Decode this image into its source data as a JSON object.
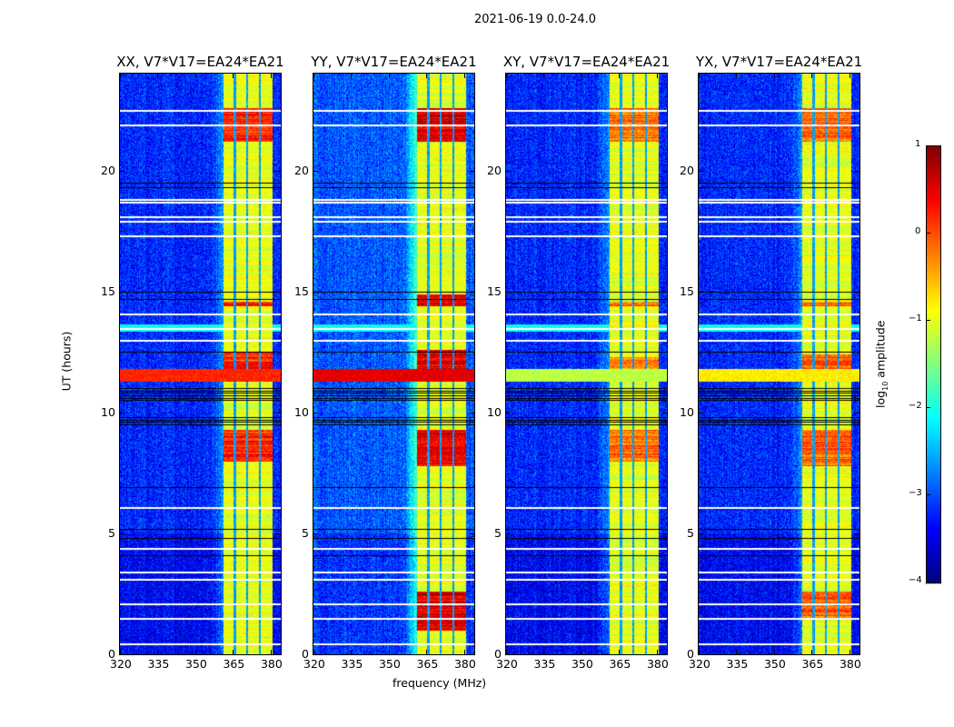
{
  "suptitle": "2021-06-19 0.0-24.0",
  "ylabel": "UT (hours)",
  "xlabel": "frequency (MHz)",
  "colorbar": {
    "label_prefix": "log",
    "label_sub": "10",
    "label_suffix": " amplitude",
    "range": [
      -4,
      1
    ],
    "ticks": [
      "1",
      "0",
      "−1",
      "−2",
      "−3",
      "−4"
    ],
    "tick_values": [
      1,
      0,
      -1,
      -2,
      -3,
      -4
    ],
    "colormap": "jet"
  },
  "chart_data": {
    "type": "heatmap",
    "xlim": [
      320,
      384
    ],
    "ylim": [
      0,
      24
    ],
    "xticks": [
      320,
      335,
      350,
      365,
      380
    ],
    "yticks": [
      0,
      5,
      10,
      15,
      20
    ],
    "rfi_band_mhz": [
      361,
      380.5
    ],
    "band_gaps_mhz": [
      365.5,
      370.5,
      375.5
    ],
    "background_log_amp": -3.2,
    "band_log_amp": -1.0,
    "flagged_rows_hours": [
      22.5,
      21.9,
      18.8,
      18.7,
      18.1,
      17.9,
      17.3,
      14.1,
      13.5,
      13.0,
      6.1,
      4.4,
      3.4,
      3.1,
      2.1,
      1.5,
      0.45
    ],
    "dark_rows_hours": [
      19.5,
      19.3,
      15.0,
      14.7,
      12.5,
      11.0,
      10.9,
      10.8,
      10.7,
      10.6,
      10.5,
      9.8,
      9.7,
      9.6,
      9.5,
      6.9,
      5.2,
      4.8,
      4.1
    ],
    "panels": [
      {
        "title": "XX, V7*V17=EA24*EA21",
        "hot_ranges_hours": [
          [
            21.2,
            22.6
          ],
          [
            11.5,
            12.5
          ],
          [
            8.0,
            9.3
          ],
          [
            14.4,
            14.6
          ]
        ],
        "broadband_rfi": {
          "hours": [
            11.3,
            11.8
          ],
          "log_amp": 0.2
        },
        "hot_level": 0.1
      },
      {
        "title": "YY, V7*V17=EA24*EA21",
        "hot_ranges_hours": [
          [
            21.2,
            22.6
          ],
          [
            11.5,
            12.6
          ],
          [
            7.8,
            9.3
          ],
          [
            14.4,
            14.9
          ],
          [
            1.0,
            2.6
          ]
        ],
        "broadband_rfi": {
          "hours": [
            11.3,
            11.8
          ],
          "log_amp": 0.5
        },
        "hot_level": 0.4
      },
      {
        "title": "XY, V7*V17=EA24*EA21",
        "hot_ranges_hours": [
          [
            21.2,
            22.6
          ],
          [
            11.5,
            12.3
          ],
          [
            8.0,
            9.3
          ],
          [
            14.4,
            14.6
          ]
        ],
        "broadband_rfi": {
          "hours": [
            11.3,
            11.8
          ],
          "log_amp": -1.2
        },
        "hot_level": -0.3
      },
      {
        "title": "YX, V7*V17=EA24*EA21",
        "hot_ranges_hours": [
          [
            21.2,
            22.6
          ],
          [
            11.5,
            12.4
          ],
          [
            7.8,
            9.3
          ],
          [
            14.4,
            14.6
          ],
          [
            1.5,
            2.6
          ]
        ],
        "broadband_rfi": {
          "hours": [
            11.3,
            11.8
          ],
          "log_amp": -0.8
        },
        "hot_level": -0.2
      }
    ]
  }
}
